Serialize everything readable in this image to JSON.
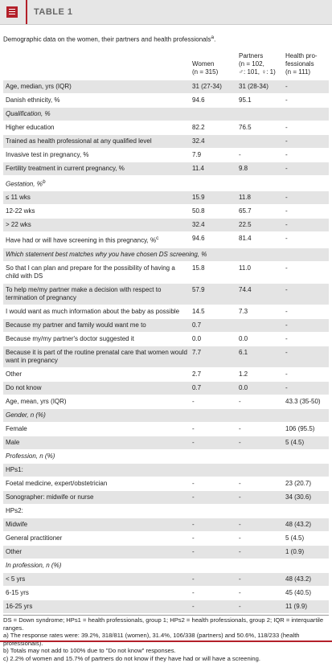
{
  "header": {
    "title": "TABLE 1"
  },
  "caption": {
    "text": "Demographic data on the women, their partners and health professionals",
    "note": "a"
  },
  "table": {
    "columns": [
      [
        "Women",
        "(n = 315)"
      ],
      [
        "Partners",
        "(n = 102,",
        "♂: 101, ♀: 1)"
      ],
      [
        "Health pro-",
        "fessionals",
        "(n = 111)"
      ]
    ],
    "rows": [
      {
        "label": "Age, median, yrs (IQR)",
        "values": [
          "31 (27-34)",
          "31 (28-34)",
          "-"
        ]
      },
      {
        "label": "Danish ethnicity, %",
        "values": [
          "94.6",
          "95.1",
          "-"
        ]
      },
      {
        "heading": "Qualification, %"
      },
      {
        "label": "Higher education",
        "values": [
          "82.2",
          "76.5",
          "-"
        ]
      },
      {
        "label": "Trained as health professional at any qualified level",
        "values": [
          "32.4",
          null,
          "-"
        ]
      },
      {
        "label": "Invasive test in pregnancy, %",
        "values": [
          "7.9",
          "-",
          "-"
        ]
      },
      {
        "label": "Fertility treatment in current pregnancy, %",
        "values": [
          "11.4",
          "9.8",
          "-"
        ]
      },
      {
        "heading": "Gestation, %",
        "note": "b"
      },
      {
        "label": "≤ 11 wks",
        "values": [
          "15.9",
          "11.8",
          "-"
        ]
      },
      {
        "label": "12-22 wks",
        "values": [
          "50.8",
          "65.7",
          "-"
        ]
      },
      {
        "label": "> 22 wks",
        "values": [
          "32.4",
          "22.5",
          "-"
        ]
      },
      {
        "label": "Have had or will have screening in this pregnancy, %",
        "note": "c",
        "values": [
          "94.6",
          "81.4",
          "-"
        ]
      },
      {
        "heading": "Which statement best matches why you have chosen DS screening, %"
      },
      {
        "label": "So that I can plan and prepare for the possibility of having a child with DS",
        "values": [
          "15.8",
          "11.0",
          "-"
        ]
      },
      {
        "label": "To help me/my partner make a decision with respect to termination of pregnancy",
        "values": [
          "57.9",
          "74.4",
          "-"
        ]
      },
      {
        "label": "I would want as much information about the baby as possible",
        "values": [
          "14.5",
          "7.3",
          "-"
        ]
      },
      {
        "label": "Because my partner and family would want me to",
        "values": [
          "0.7",
          null,
          "-"
        ]
      },
      {
        "label": "Because my/my partner's doctor suggested it",
        "values": [
          "0.0",
          "0.0",
          "-"
        ]
      },
      {
        "label": "Because it is part of the routine prenatal care that women would want in pregnancy",
        "values": [
          "7.7",
          "6.1",
          "-"
        ]
      },
      {
        "label": "Other",
        "values": [
          "2.7",
          "1.2",
          "-"
        ]
      },
      {
        "label": "Do not know",
        "values": [
          "0.7",
          "0.0",
          "-"
        ]
      },
      {
        "label": "Age, mean, yrs (IQR)",
        "values": [
          "-",
          "-",
          "43.3 (35-50)"
        ]
      },
      {
        "heading": "Gender, n (%)"
      },
      {
        "label": "Female",
        "values": [
          "-",
          "-",
          "106 (95.5)"
        ]
      },
      {
        "label": "Male",
        "values": [
          "-",
          "-",
          "5 (4.5)"
        ]
      },
      {
        "heading": "Profession, n (%)"
      },
      {
        "label": "HPs1:",
        "values": [
          null,
          null,
          null
        ]
      },
      {
        "label": "Foetal medicine, expert/obstetrician",
        "values": [
          "-",
          "-",
          "23 (20.7)"
        ]
      },
      {
        "label": "Sonographer: midwife or nurse",
        "values": [
          "-",
          "-",
          "34 (30.6)"
        ]
      },
      {
        "label": "HPs2:",
        "values": [
          null,
          null,
          null
        ]
      },
      {
        "label": "Midwife",
        "values": [
          "-",
          "-",
          "48 (43.2)"
        ]
      },
      {
        "label": "General practitioner",
        "values": [
          "-",
          "-",
          "5 (4.5)"
        ]
      },
      {
        "label": "Other",
        "values": [
          "-",
          "-",
          "1 (0.9)"
        ]
      },
      {
        "heading": "In profession, n (%)"
      },
      {
        "label": "< 5 yrs",
        "values": [
          "-",
          "-",
          "48 (43.2)"
        ]
      },
      {
        "label": "6-15 yrs",
        "values": [
          "-",
          "-",
          "45 (40.5)"
        ]
      },
      {
        "label": "16-25 yrs",
        "values": [
          "-",
          "-",
          "11 (9.9)"
        ]
      }
    ]
  },
  "footnotes": [
    "DS = Down syndrome; HPs1 = health professionals, group 1; HPs2 = health professionals, group 2; IQR = interquartile ranges.",
    "a) The response rates were: 39.2%, 318/811 (women), 31.4%, 106/338 (partners) and 50.6%, 118/233 (health professionals).",
    "b) Totals may not add to 100% due to \"Do not know\" responses.",
    "c) 2.2% of women and 15.7% of partners do not know if they have had or will have a screening."
  ]
}
